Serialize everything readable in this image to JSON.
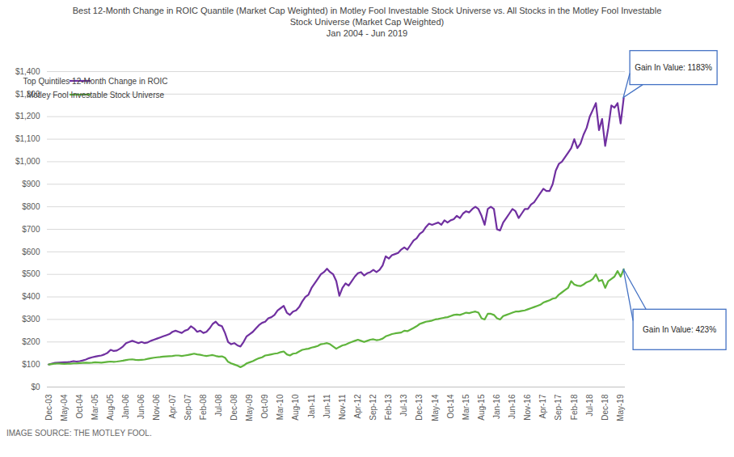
{
  "chart_data": {
    "type": "line",
    "title": "Best 12-Month Change in ROIC Quantile (Market Cap Weighted) in Motley Fool Investable Stock Universe vs. All Stocks in the Motley Fool Investable Stock Universe (Market Cap Weighted)",
    "subtitle": "Jan 2004 - Jun 2019",
    "caption": "IMAGE SOURCE: THE MOTLEY FOOL.",
    "categories": [
      "Dec-03",
      null,
      null,
      null,
      null,
      "May-04",
      null,
      null,
      null,
      null,
      "Oct-04",
      null,
      null,
      null,
      null,
      "Mar-05",
      null,
      null,
      null,
      null,
      "Aug-05",
      null,
      null,
      null,
      null,
      "Jan-06",
      null,
      null,
      null,
      null,
      "Jun-06",
      null,
      null,
      null,
      null,
      "Nov-06",
      null,
      null,
      null,
      null,
      "Apr-07",
      null,
      null,
      null,
      null,
      "Sep-07",
      null,
      null,
      null,
      null,
      "Feb-08",
      null,
      null,
      null,
      null,
      "Jul-08",
      null,
      null,
      null,
      null,
      "Dec-08",
      null,
      null,
      null,
      null,
      "May-09",
      null,
      null,
      null,
      null,
      "Oct-09",
      null,
      null,
      null,
      null,
      "Mar-10",
      null,
      null,
      null,
      null,
      "Aug-10",
      null,
      null,
      null,
      null,
      "Jan-11",
      null,
      null,
      null,
      null,
      "Jun-11",
      null,
      null,
      null,
      null,
      "Nov-11",
      null,
      null,
      null,
      null,
      "Apr-12",
      null,
      null,
      null,
      null,
      "Sep-12",
      null,
      null,
      null,
      null,
      "Feb-13",
      null,
      null,
      null,
      null,
      "Jul-13",
      null,
      null,
      null,
      null,
      "Dec-13",
      null,
      null,
      null,
      null,
      "May-14",
      null,
      null,
      null,
      null,
      "Oct-14",
      null,
      null,
      null,
      null,
      "Mar-15",
      null,
      null,
      null,
      null,
      "Aug-15",
      null,
      null,
      null,
      null,
      "Jan-16",
      null,
      null,
      null,
      null,
      "Jun-16",
      null,
      null,
      null,
      null,
      "Nov-16",
      null,
      null,
      null,
      null,
      "Apr-17",
      null,
      null,
      null,
      null,
      "Sep-17",
      null,
      null,
      null,
      null,
      "Feb-18",
      null,
      null,
      null,
      null,
      "Jul-18",
      null,
      null,
      null,
      null,
      "Dec-18",
      null,
      null,
      null,
      null,
      "May-19",
      null
    ],
    "series": [
      {
        "name": "Top Quintiles 12-Month Change in ROIC",
        "color": "#7030a0",
        "values": [
          100,
          104,
          107,
          108,
          109,
          110,
          110,
          112,
          115,
          113,
          115,
          118,
          122,
          128,
          132,
          135,
          138,
          140,
          145,
          152,
          165,
          160,
          162,
          170,
          180,
          195,
          200,
          205,
          200,
          195,
          200,
          195,
          198,
          205,
          210,
          215,
          220,
          225,
          230,
          235,
          245,
          250,
          245,
          240,
          250,
          255,
          270,
          260,
          245,
          250,
          240,
          245,
          260,
          280,
          290,
          275,
          270,
          240,
          200,
          190,
          195,
          185,
          180,
          200,
          225,
          235,
          245,
          260,
          275,
          285,
          290,
          305,
          310,
          320,
          340,
          350,
          360,
          330,
          320,
          335,
          340,
          355,
          380,
          400,
          410,
          440,
          460,
          480,
          500,
          510,
          525,
          510,
          500,
          470,
          405,
          440,
          460,
          450,
          470,
          490,
          505,
          510,
          495,
          505,
          510,
          520,
          510,
          520,
          540,
          580,
          570,
          585,
          590,
          595,
          610,
          620,
          610,
          630,
          650,
          660,
          680,
          690,
          710,
          725,
          720,
          725,
          730,
          720,
          740,
          730,
          740,
          745,
          760,
          750,
          770,
          780,
          775,
          790,
          800,
          790,
          760,
          720,
          790,
          800,
          790,
          700,
          695,
          730,
          750,
          770,
          790,
          780,
          750,
          770,
          790,
          790,
          810,
          820,
          840,
          860,
          880,
          870,
          870,
          900,
          960,
          990,
          1000,
          1020,
          1040,
          1060,
          1100,
          1060,
          1080,
          1120,
          1150,
          1200,
          1230,
          1260,
          1140,
          1190,
          1070,
          1150,
          1250,
          1240,
          1260,
          1170,
          1283
        ]
      },
      {
        "name": "Motley Fool Investable Stock Universe",
        "color": "#5fb43c",
        "values": [
          100,
          102,
          104,
          105,
          104,
          103,
          104,
          104,
          105,
          105,
          106,
          107,
          108,
          107,
          108,
          110,
          109,
          108,
          110,
          112,
          113,
          112,
          113,
          115,
          117,
          120,
          122,
          123,
          121,
          120,
          121,
          122,
          125,
          128,
          130,
          132,
          133,
          135,
          136,
          137,
          138,
          140,
          140,
          138,
          140,
          142,
          145,
          148,
          145,
          143,
          140,
          138,
          140,
          142,
          138,
          135,
          136,
          130,
          112,
          105,
          100,
          95,
          88,
          95,
          105,
          110,
          115,
          122,
          128,
          132,
          140,
          142,
          145,
          148,
          150,
          155,
          158,
          145,
          140,
          148,
          150,
          158,
          165,
          168,
          170,
          175,
          178,
          182,
          190,
          192,
          195,
          190,
          180,
          170,
          178,
          185,
          188,
          195,
          200,
          205,
          210,
          205,
          200,
          205,
          210,
          212,
          208,
          210,
          215,
          225,
          230,
          235,
          238,
          240,
          242,
          250,
          248,
          255,
          262,
          270,
          280,
          285,
          290,
          292,
          295,
          300,
          302,
          305,
          308,
          310,
          315,
          320,
          322,
          320,
          325,
          330,
          328,
          332,
          335,
          330,
          305,
          300,
          325,
          325,
          320,
          305,
          300,
          315,
          320,
          325,
          330,
          335,
          335,
          338,
          340,
          345,
          350,
          355,
          360,
          365,
          375,
          380,
          385,
          392,
          395,
          410,
          420,
          430,
          440,
          470,
          455,
          450,
          448,
          455,
          465,
          470,
          480,
          500,
          470,
          475,
          440,
          470,
          480,
          490,
          515,
          490,
          523
        ]
      }
    ],
    "ylim": [
      0,
      1400
    ],
    "yticks": [
      {
        "value": 0,
        "label": "$0"
      },
      {
        "value": 100,
        "label": "$100"
      },
      {
        "value": 200,
        "label": "$200"
      },
      {
        "value": 300,
        "label": "$300"
      },
      {
        "value": 400,
        "label": "$400"
      },
      {
        "value": 500,
        "label": "$500"
      },
      {
        "value": 600,
        "label": "$600"
      },
      {
        "value": 700,
        "label": "$700"
      },
      {
        "value": 800,
        "label": "$800"
      },
      {
        "value": 900,
        "label": "$900"
      },
      {
        "value": 1000,
        "label": "$1,000"
      },
      {
        "value": 1100,
        "label": "$1,100"
      },
      {
        "value": 1200,
        "label": "$1,200"
      },
      {
        "value": 1300,
        "label": "$1,300"
      },
      {
        "value": 1400,
        "label": "$1,400"
      }
    ],
    "grid": true,
    "legend": "top-left",
    "annotations": [
      {
        "text": "Gain In Value: 1183%",
        "series": "Top Quintiles 12-Month Change in ROIC"
      },
      {
        "text": "Gain In Value: 423%",
        "series": "Motley Fool Investable Stock Universe"
      }
    ]
  }
}
